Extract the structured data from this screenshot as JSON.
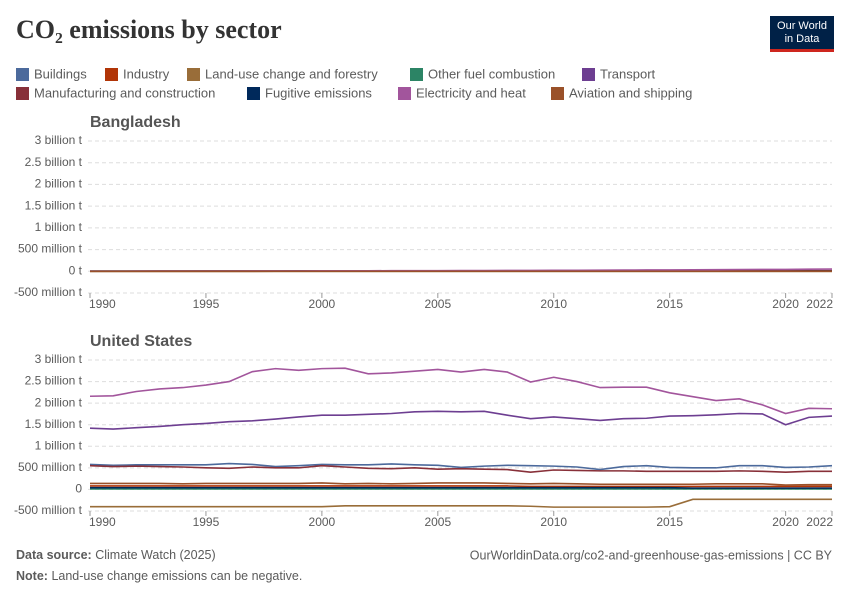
{
  "title": "CO₂ emissions by sector",
  "logo": [
    "Our World",
    "in Data"
  ],
  "footer": {
    "source_label": "Data source:",
    "source": "Climate Watch (2025)",
    "url": "OurWorldinData.org/co2-and-greenhouse-gas-emissions | CC BY",
    "note_label": "Note:",
    "note": "Land-use change emissions can be negative."
  },
  "chart_data": [
    {
      "type": "line",
      "title": "Bangladesh",
      "x": [
        1990,
        1991,
        1992,
        1993,
        1994,
        1995,
        1996,
        1997,
        1998,
        1999,
        2000,
        2001,
        2002,
        2003,
        2004,
        2005,
        2006,
        2007,
        2008,
        2009,
        2010,
        2011,
        2012,
        2013,
        2014,
        2015,
        2016,
        2017,
        2018,
        2019,
        2020,
        2021,
        2022
      ],
      "xlim": [
        1990,
        2022
      ],
      "xticks": [
        1990,
        1995,
        2000,
        2005,
        2010,
        2015,
        2020,
        2022
      ],
      "ylim": [
        -500000000,
        3000000000
      ],
      "yticks": [
        {
          "value": -500000000,
          "label": "-500 million t"
        },
        {
          "value": 0,
          "label": "0 t"
        },
        {
          "value": 500000000,
          "label": "500 million t"
        },
        {
          "value": 1000000000,
          "label": "1 billion t"
        },
        {
          "value": 1500000000,
          "label": "1.5 billion t"
        },
        {
          "value": 2000000000,
          "label": "2 billion t"
        },
        {
          "value": 2500000000,
          "label": "2.5 billion t"
        },
        {
          "value": 3000000000,
          "label": "3 billion t"
        }
      ],
      "grid": true,
      "series": [
        {
          "name": "Buildings",
          "color": "#4c6a9c",
          "values": [
            2000000.0,
            2000000.0,
            2000000.0,
            2000000.0,
            2000000.0,
            2000000.0,
            3000000.0,
            3000000.0,
            3000000.0,
            3000000.0,
            3000000.0,
            3000000.0,
            3000000.0,
            3000000.0,
            4000000.0,
            4000000.0,
            4000000.0,
            4000000.0,
            4000000.0,
            4000000.0,
            5000000.0,
            5000000.0,
            5000000.0,
            5000000.0,
            5000000.0,
            5000000.0,
            6000000.0,
            6000000.0,
            6000000.0,
            6000000.0,
            6000000.0,
            6000000.0,
            6000000.0
          ]
        },
        {
          "name": "Industry",
          "color": "#b13507",
          "values": [
            1000000.0,
            1000000.0,
            1000000.0,
            1000000.0,
            1000000.0,
            1000000.0,
            1000000.0,
            1000000.0,
            1000000.0,
            2000000.0,
            2000000.0,
            2000000.0,
            2000000.0,
            2000000.0,
            2000000.0,
            2000000.0,
            2000000.0,
            3000000.0,
            3000000.0,
            3000000.0,
            3000000.0,
            3000000.0,
            3000000.0,
            3000000.0,
            4000000.0,
            4000000.0,
            4000000.0,
            4000000.0,
            4000000.0,
            5000000.0,
            5000000.0,
            5000000.0,
            5000000.0
          ]
        },
        {
          "name": "Land-use change and forestry",
          "color": "#996d39",
          "values": [
            -5000000.0,
            -5000000.0,
            -5000000.0,
            -5000000.0,
            -5000000.0,
            -5000000.0,
            -5000000.0,
            -5000000.0,
            -5000000.0,
            -5000000.0,
            -5000000.0,
            -5000000.0,
            -5000000.0,
            -5000000.0,
            -5000000.0,
            -5000000.0,
            -5000000.0,
            -5000000.0,
            -5000000.0,
            -5000000.0,
            -5000000.0,
            -5000000.0,
            -5000000.0,
            -5000000.0,
            -5000000.0,
            -5000000.0,
            -5000000.0,
            -5000000.0,
            -5000000.0,
            -5000000.0,
            -5000000.0,
            -5000000.0,
            -5000000.0
          ]
        },
        {
          "name": "Other fuel combustion",
          "color": "#2c8465",
          "values": [
            1000000.0,
            1000000.0,
            1000000.0,
            1000000.0,
            1000000.0,
            1000000.0,
            1000000.0,
            1000000.0,
            1000000.0,
            1000000.0,
            1000000.0,
            1000000.0,
            1000000.0,
            1000000.0,
            2000000.0,
            2000000.0,
            2000000.0,
            2000000.0,
            2000000.0,
            2000000.0,
            2000000.0,
            2000000.0,
            2000000.0,
            2000000.0,
            2000000.0,
            2000000.0,
            3000000.0,
            3000000.0,
            3000000.0,
            3000000.0,
            3000000.0,
            3000000.0,
            3000000.0
          ]
        },
        {
          "name": "Transport",
          "color": "#6d3e91",
          "values": [
            1000000.0,
            1000000.0,
            1000000.0,
            1000000.0,
            1000000.0,
            2000000.0,
            2000000.0,
            2000000.0,
            2000000.0,
            2000000.0,
            2000000.0,
            3000000.0,
            3000000.0,
            3000000.0,
            3000000.0,
            3000000.0,
            3000000.0,
            4000000.0,
            4000000.0,
            4000000.0,
            4000000.0,
            4000000.0,
            5000000.0,
            5000000.0,
            5000000.0,
            6000000.0,
            6000000.0,
            6000000.0,
            7000000.0,
            7000000.0,
            7000000.0,
            8000000.0,
            8000000.0
          ]
        },
        {
          "name": "Manufacturing and construction",
          "color": "#883039",
          "values": [
            3000000.0,
            3000000.0,
            3000000.0,
            4000000.0,
            4000000.0,
            4000000.0,
            5000000.0,
            5000000.0,
            5000000.0,
            5000000.0,
            6000000.0,
            6000000.0,
            6000000.0,
            7000000.0,
            7000000.0,
            7000000.0,
            8000000.0,
            8000000.0,
            8000000.0,
            9000000.0,
            9000000.0,
            9000000.0,
            10000000.0,
            10000000.0,
            11000000.0,
            11000000.0,
            12000000.0,
            12000000.0,
            13000000.0,
            13000000.0,
            14000000.0,
            14000000.0,
            15000000.0
          ]
        },
        {
          "name": "Fugitive emissions",
          "color": "#00295b",
          "values": [
            3000000.0,
            3000000.0,
            3000000.0,
            3000000.0,
            3000000.0,
            3000000.0,
            3000000.0,
            3000000.0,
            3000000.0,
            4000000.0,
            4000000.0,
            4000000.0,
            4000000.0,
            4000000.0,
            4000000.0,
            4000000.0,
            5000000.0,
            5000000.0,
            5000000.0,
            5000000.0,
            5000000.0,
            5000000.0,
            5000000.0,
            5000000.0,
            6000000.0,
            6000000.0,
            6000000.0,
            6000000.0,
            6000000.0,
            6000000.0,
            6000000.0,
            6000000.0,
            6000000.0
          ]
        },
        {
          "name": "Electricity and heat",
          "color": "#a2559c",
          "values": [
            3000000.0,
            3000000.0,
            4000000.0,
            4000000.0,
            5000000.0,
            5000000.0,
            6000000.0,
            7000000.0,
            8000000.0,
            9000000.0,
            10000000.0,
            11000000.0,
            12000000.0,
            13000000.0,
            14000000.0,
            15000000.0,
            17000000.0,
            18000000.0,
            19000000.0,
            20000000.0,
            22000000.0,
            24000000.0,
            26000000.0,
            28000000.0,
            30000000.0,
            32000000.0,
            35000000.0,
            38000000.0,
            40000000.0,
            42000000.0,
            42000000.0,
            48000000.0,
            50000000.0
          ]
        },
        {
          "name": "Aviation and shipping",
          "color": "#9a5129",
          "values": [
            300000.0,
            300000.0,
            300000.0,
            300000.0,
            400000.0,
            400000.0,
            400000.0,
            400000.0,
            500000.0,
            500000.0,
            500000.0,
            500000.0,
            600000.0,
            600000.0,
            600000.0,
            700000.0,
            700000.0,
            700000.0,
            800000.0,
            800000.0,
            800000.0,
            900000.0,
            900000.0,
            1000000.0,
            1000000.0,
            1000000.0,
            1100000.0,
            1100000.0,
            1200000.0,
            1300000.0,
            1200000.0,
            1400000.0,
            1500000.0
          ]
        }
      ]
    },
    {
      "type": "line",
      "title": "United States",
      "x": [
        1990,
        1991,
        1992,
        1993,
        1994,
        1995,
        1996,
        1997,
        1998,
        1999,
        2000,
        2001,
        2002,
        2003,
        2004,
        2005,
        2006,
        2007,
        2008,
        2009,
        2010,
        2011,
        2012,
        2013,
        2014,
        2015,
        2016,
        2017,
        2018,
        2019,
        2020,
        2021,
        2022
      ],
      "xlim": [
        1990,
        2022
      ],
      "xticks": [
        1990,
        1995,
        2000,
        2005,
        2010,
        2015,
        2020,
        2022
      ],
      "ylim": [
        -500000000,
        3000000000
      ],
      "yticks": [
        {
          "value": -500000000,
          "label": "-500 million t"
        },
        {
          "value": 0,
          "label": "0"
        },
        {
          "value": 500000000,
          "label": "500 million t"
        },
        {
          "value": 1000000000,
          "label": "1 billion t"
        },
        {
          "value": 1500000000,
          "label": "1.5 billion t"
        },
        {
          "value": 2000000000,
          "label": "2 billion t"
        },
        {
          "value": 2500000000,
          "label": "2.5 billion t"
        },
        {
          "value": 3000000000,
          "label": "3 billion t"
        }
      ],
      "grid": true,
      "series": [
        {
          "name": "Buildings",
          "color": "#4c6a9c",
          "values": [
            580000000.0,
            560000000.0,
            570000000.0,
            570000000.0,
            570000000.0,
            570000000.0,
            600000000.0,
            580000000.0,
            530000000.0,
            550000000.0,
            580000000.0,
            570000000.0,
            570000000.0,
            590000000.0,
            570000000.0,
            560000000.0,
            510000000.0,
            540000000.0,
            560000000.0,
            550000000.0,
            540000000.0,
            520000000.0,
            460000000.0,
            530000000.0,
            550000000.0,
            510000000.0,
            500000000.0,
            500000000.0,
            550000000.0,
            550000000.0,
            510000000.0,
            520000000.0,
            550000000.0
          ]
        },
        {
          "name": "Industry",
          "color": "#b13507",
          "values": [
            80000000.0,
            80000000.0,
            80000000.0,
            80000000.0,
            80000000.0,
            80000000.0,
            80000000.0,
            80000000.0,
            80000000.0,
            80000000.0,
            80000000.0,
            80000000.0,
            80000000.0,
            80000000.0,
            80000000.0,
            80000000.0,
            80000000.0,
            80000000.0,
            80000000.0,
            70000000.0,
            70000000.0,
            70000000.0,
            70000000.0,
            70000000.0,
            70000000.0,
            70000000.0,
            70000000.0,
            70000000.0,
            70000000.0,
            70000000.0,
            70000000.0,
            70000000.0,
            70000000.0
          ]
        },
        {
          "name": "Land-use change and forestry",
          "color": "#996d39",
          "values": [
            -400000000.0,
            -400000000.0,
            -400000000.0,
            -400000000.0,
            -400000000.0,
            -400000000.0,
            -400000000.0,
            -400000000.0,
            -400000000.0,
            -400000000.0,
            -400000000.0,
            -380000000.0,
            -380000000.0,
            -380000000.0,
            -380000000.0,
            -380000000.0,
            -380000000.0,
            -380000000.0,
            -380000000.0,
            -390000000.0,
            -410000000.0,
            -410000000.0,
            -410000000.0,
            -410000000.0,
            -410000000.0,
            -400000000.0,
            -230000000.0,
            -230000000.0,
            -230000000.0,
            -230000000.0,
            -230000000.0,
            -230000000.0,
            -230000000.0
          ]
        },
        {
          "name": "Other fuel combustion",
          "color": "#2c8465",
          "values": [
            10000000.0,
            10000000.0,
            10000000.0,
            10000000.0,
            10000000.0,
            10000000.0,
            10000000.0,
            10000000.0,
            10000000.0,
            10000000.0,
            10000000.0,
            10000000.0,
            10000000.0,
            10000000.0,
            10000000.0,
            10000000.0,
            10000000.0,
            10000000.0,
            10000000.0,
            10000000.0,
            10000000.0,
            10000000.0,
            10000000.0,
            10000000.0,
            10000000.0,
            10000000.0,
            10000000.0,
            10000000.0,
            10000000.0,
            10000000.0,
            10000000.0,
            10000000.0,
            10000000.0
          ]
        },
        {
          "name": "Transport",
          "color": "#6d3e91",
          "values": [
            1420000000.0,
            1400000000.0,
            1430000000.0,
            1460000000.0,
            1500000000.0,
            1530000000.0,
            1570000000.0,
            1590000000.0,
            1630000000.0,
            1680000000.0,
            1720000000.0,
            1720000000.0,
            1740000000.0,
            1760000000.0,
            1800000000.0,
            1810000000.0,
            1800000000.0,
            1810000000.0,
            1720000000.0,
            1640000000.0,
            1680000000.0,
            1640000000.0,
            1600000000.0,
            1640000000.0,
            1650000000.0,
            1700000000.0,
            1710000000.0,
            1730000000.0,
            1760000000.0,
            1750000000.0,
            1500000000.0,
            1670000000.0,
            1700000000.0
          ]
        },
        {
          "name": "Manufacturing and construction",
          "color": "#883039",
          "values": [
            550000000.0,
            530000000.0,
            540000000.0,
            530000000.0,
            520000000.0,
            500000000.0,
            490000000.0,
            520000000.0,
            500000000.0,
            500000000.0,
            550000000.0,
            520000000.0,
            490000000.0,
            480000000.0,
            500000000.0,
            470000000.0,
            480000000.0,
            470000000.0,
            460000000.0,
            400000000.0,
            450000000.0,
            440000000.0,
            430000000.0,
            430000000.0,
            420000000.0,
            420000000.0,
            420000000.0,
            420000000.0,
            430000000.0,
            420000000.0,
            400000000.0,
            420000000.0,
            420000000.0
          ]
        },
        {
          "name": "Fugitive emissions",
          "color": "#00295b",
          "values": [
            40000000.0,
            40000000.0,
            40000000.0,
            40000000.0,
            40000000.0,
            40000000.0,
            40000000.0,
            40000000.0,
            40000000.0,
            40000000.0,
            40000000.0,
            40000000.0,
            40000000.0,
            40000000.0,
            40000000.0,
            40000000.0,
            40000000.0,
            40000000.0,
            40000000.0,
            40000000.0,
            40000000.0,
            40000000.0,
            40000000.0,
            40000000.0,
            40000000.0,
            40000000.0,
            30000000.0,
            30000000.0,
            30000000.0,
            30000000.0,
            30000000.0,
            30000000.0,
            30000000.0
          ]
        },
        {
          "name": "Electricity and heat",
          "color": "#a2559c",
          "values": [
            2160000000.0,
            2170000000.0,
            2270000000.0,
            2330000000.0,
            2360000000.0,
            2420000000.0,
            2500000000.0,
            2730000000.0,
            2800000000.0,
            2760000000.0,
            2800000000.0,
            2810000000.0,
            2680000000.0,
            2700000000.0,
            2740000000.0,
            2780000000.0,
            2720000000.0,
            2780000000.0,
            2720000000.0,
            2490000000.0,
            2600000000.0,
            2500000000.0,
            2360000000.0,
            2370000000.0,
            2370000000.0,
            2240000000.0,
            2150000000.0,
            2060000000.0,
            2100000000.0,
            1960000000.0,
            1760000000.0,
            1880000000.0,
            1870000000.0
          ]
        },
        {
          "name": "Aviation and shipping",
          "color": "#9a5129",
          "values": [
            140000000.0,
            140000000.0,
            140000000.0,
            140000000.0,
            130000000.0,
            140000000.0,
            140000000.0,
            140000000.0,
            140000000.0,
            140000000.0,
            150000000.0,
            130000000.0,
            140000000.0,
            130000000.0,
            140000000.0,
            150000000.0,
            150000000.0,
            150000000.0,
            140000000.0,
            130000000.0,
            140000000.0,
            130000000.0,
            120000000.0,
            120000000.0,
            120000000.0,
            120000000.0,
            120000000.0,
            130000000.0,
            130000000.0,
            130000000.0,
            100000000.0,
            110000000.0,
            110000000.0
          ]
        }
      ]
    }
  ]
}
